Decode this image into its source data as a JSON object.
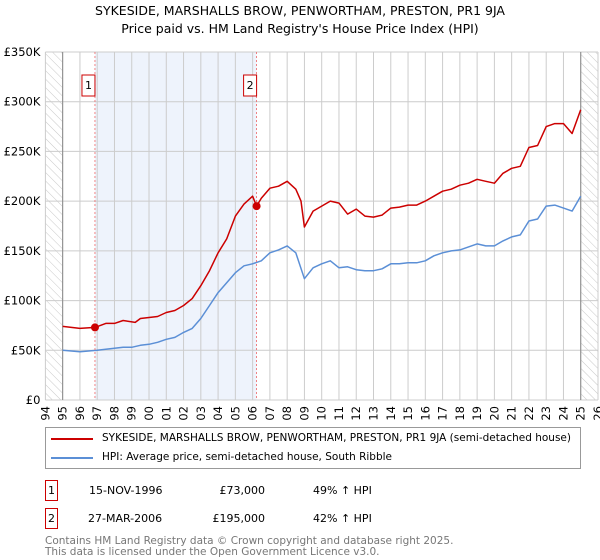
{
  "title_line1": "SYKESIDE, MARSHALLS BROW, PENWORTHAM, PRESTON, PR1 9JA",
  "title_line2": "Price paid vs. HM Land Registry's House Price Index (HPI)",
  "colors": {
    "property": "#cc0000",
    "hpi": "#5b8fd6",
    "shade": "#eef3fc",
    "grid": "#cccccc"
  },
  "chart_data": {
    "type": "line",
    "title": "SYKESIDE, MARSHALLS BROW, PENWORTHAM, PRESTON, PR1 9JA — Price paid vs. HM Land Registry's House Price Index (HPI)",
    "xlim": [
      1994,
      2026
    ],
    "ylim": [
      0,
      350000
    ],
    "x_ticks": [
      "1994",
      "1995",
      "1996",
      "1997",
      "1998",
      "1999",
      "2000",
      "2001",
      "2002",
      "2003",
      "2004",
      "2005",
      "2006",
      "2007",
      "2008",
      "2009",
      "2010",
      "2011",
      "2012",
      "2013",
      "2014",
      "2015",
      "2016",
      "2017",
      "2018",
      "2019",
      "2020",
      "2021",
      "2022",
      "2023",
      "2024",
      "2025",
      "2026"
    ],
    "y_ticks": [
      {
        "v": 0,
        "label": "£0"
      },
      {
        "v": 50000,
        "label": "£50K"
      },
      {
        "v": 100000,
        "label": "£100K"
      },
      {
        "v": 150000,
        "label": "£150K"
      },
      {
        "v": 200000,
        "label": "£200K"
      },
      {
        "v": 250000,
        "label": "£250K"
      },
      {
        "v": 300000,
        "label": "£300K"
      },
      {
        "v": 350000,
        "label": "£350K"
      }
    ],
    "grid": true,
    "hatched_ranges": [
      [
        1994,
        1995
      ],
      [
        2025,
        2026
      ]
    ],
    "series": [
      {
        "name": "SYKESIDE, MARSHALLS BROW, PENWORTHAM, PRESTON, PR1 9JA (semi-detached house)",
        "color": "#cc0000",
        "x": [
          1995,
          1996,
          1996.87,
          1997.5,
          1998,
          1998.5,
          1999.2,
          1999.5,
          2000,
          2000.5,
          2001,
          2001.5,
          2002,
          2002.5,
          2003,
          2003.5,
          2004,
          2004.5,
          2005,
          2005.5,
          2006,
          2006.23,
          2006.5,
          2007,
          2007.5,
          2008,
          2008.5,
          2008.8,
          2009,
          2009.5,
          2010,
          2010.5,
          2011,
          2011.5,
          2012,
          2012.5,
          2013,
          2013.5,
          2014,
          2014.5,
          2015,
          2015.5,
          2016,
          2016.5,
          2017,
          2017.5,
          2018,
          2018.5,
          2019,
          2019.5,
          2020,
          2020.5,
          2021,
          2021.5,
          2022,
          2022.5,
          2023,
          2023.5,
          2024,
          2024.5,
          2025
        ],
        "values": [
          74000,
          72000,
          73000,
          77000,
          77000,
          80000,
          78000,
          82000,
          83000,
          84000,
          88000,
          90000,
          95000,
          102000,
          115000,
          130000,
          148000,
          162000,
          185000,
          197000,
          205000,
          195000,
          203000,
          213000,
          215000,
          220000,
          212000,
          200000,
          174000,
          190000,
          195000,
          200000,
          198000,
          187000,
          192000,
          185000,
          184000,
          186000,
          193000,
          194000,
          196000,
          196000,
          200000,
          205000,
          210000,
          212000,
          216000,
          218000,
          222000,
          220000,
          218000,
          228000,
          233000,
          235000,
          254000,
          256000,
          275000,
          278000,
          278000,
          268000,
          292000
        ]
      },
      {
        "name": "HPI: Average price, semi-detached house, South Ribble",
        "color": "#5b8fd6",
        "x": [
          1995,
          1996,
          1997,
          1997.5,
          1998,
          1998.5,
          1999,
          1999.5,
          2000,
          2000.5,
          2001,
          2001.5,
          2002,
          2002.5,
          2003,
          2003.5,
          2004,
          2004.5,
          2005,
          2005.5,
          2006,
          2006.5,
          2007,
          2007.5,
          2008,
          2008.5,
          2009,
          2009.5,
          2010,
          2010.5,
          2011,
          2011.5,
          2012,
          2012.5,
          2013,
          2013.5,
          2014,
          2014.5,
          2015,
          2015.5,
          2016,
          2016.5,
          2017,
          2017.5,
          2018,
          2018.5,
          2019,
          2019.5,
          2020,
          2020.5,
          2021,
          2021.5,
          2022,
          2022.5,
          2023,
          2023.5,
          2024,
          2024.5,
          2025
        ],
        "values": [
          50000,
          48500,
          50000,
          51000,
          52000,
          53000,
          53000,
          55000,
          56000,
          58000,
          61000,
          63000,
          68000,
          72000,
          82000,
          95000,
          108000,
          118000,
          128000,
          135000,
          137000,
          140000,
          148000,
          151000,
          155000,
          148000,
          122000,
          133000,
          137000,
          140000,
          133000,
          134000,
          131000,
          130000,
          130000,
          132000,
          137000,
          137000,
          138000,
          138000,
          140000,
          145000,
          148000,
          150000,
          151000,
          154000,
          157000,
          155000,
          155000,
          160000,
          164000,
          166000,
          180000,
          182000,
          195000,
          196000,
          193000,
          190000,
          205000
        ]
      }
    ],
    "sales": [
      {
        "id": "1",
        "x": 1996.87,
        "value": 73000
      },
      {
        "id": "2",
        "x": 2006.23,
        "value": 195000
      }
    ],
    "legend_position": "below"
  },
  "legend": {
    "property": "SYKESIDE, MARSHALLS BROW, PENWORTHAM, PRESTON, PR1 9JA (semi-detached house)",
    "hpi": "HPI: Average price, semi-detached house, South Ribble"
  },
  "sales_table": [
    {
      "id": "1",
      "date": "15-NOV-1996",
      "price": "£73,000",
      "hpi": "49% ↑ HPI"
    },
    {
      "id": "2",
      "date": "27-MAR-2006",
      "price": "£195,000",
      "hpi": "42% ↑ HPI"
    }
  ],
  "footer": {
    "line1": "Contains HM Land Registry data © Crown copyright and database right 2025.",
    "line2": "This data is licensed under the Open Government Licence v3.0."
  }
}
